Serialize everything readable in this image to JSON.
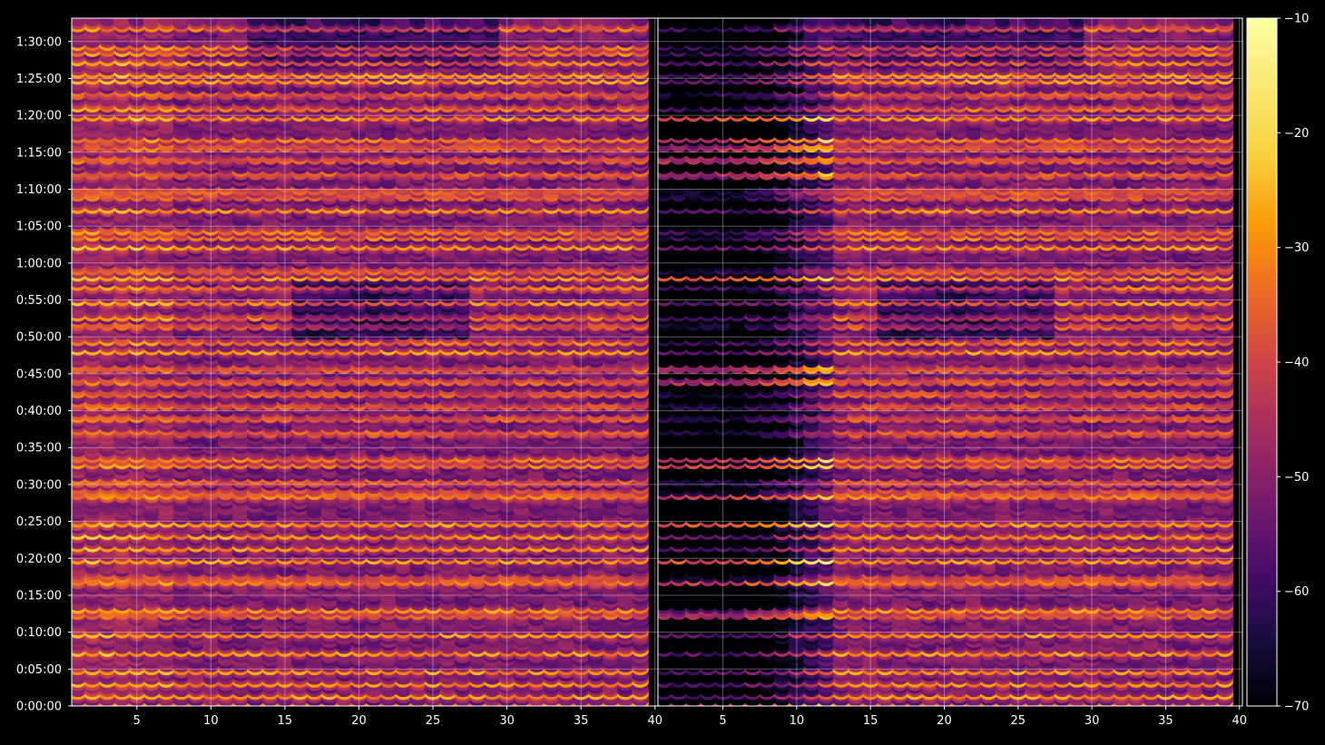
{
  "chart_data": {
    "type": "heatmap",
    "title": "",
    "xlabel": "",
    "ylabel": "",
    "panels": [
      {
        "name": "left",
        "xlim": [
          1,
          40
        ],
        "x_ticks": [
          "5",
          "10",
          "15",
          "20",
          "25",
          "30",
          "35",
          "40"
        ],
        "x_tick_values": [
          5,
          10,
          15,
          20,
          25,
          30,
          35,
          40
        ]
      },
      {
        "name": "right",
        "xlim": [
          1,
          40
        ],
        "x_ticks": [
          "5",
          "10",
          "15",
          "20",
          "25",
          "30",
          "35",
          "40"
        ],
        "x_tick_values": [
          5,
          10,
          15,
          20,
          25,
          30,
          35,
          40
        ]
      }
    ],
    "y_axis": {
      "unit": "time",
      "ylim_seconds": [
        0,
        5590
      ],
      "ticks": [
        "0:00:00",
        "0:05:00",
        "0:10:00",
        "0:15:00",
        "0:20:00",
        "0:25:00",
        "0:30:00",
        "0:35:00",
        "0:40:00",
        "0:45:00",
        "0:50:00",
        "0:55:00",
        "1:00:00",
        "1:05:00",
        "1:10:00",
        "1:15:00",
        "1:20:00",
        "1:25:00",
        "1:30:00"
      ],
      "tick_seconds": [
        0,
        300,
        600,
        900,
        1200,
        1500,
        1800,
        2100,
        2400,
        2700,
        3000,
        3300,
        3600,
        3900,
        4200,
        4500,
        4800,
        5100,
        5400
      ]
    },
    "colorbar": {
      "colormap": "inferno",
      "range": [
        -70,
        -10
      ],
      "ticks": [
        "−70",
        "−60",
        "−50",
        "−40",
        "−30",
        "−20",
        "−10"
      ],
      "tick_values": [
        -70,
        -60,
        -50,
        -40,
        -30,
        -20,
        -10
      ]
    },
    "rows": {
      "left_bright_times_seconds": [
        20,
        100,
        200,
        300,
        450,
        600,
        760,
        800,
        1020,
        1060,
        1200,
        1300,
        1400,
        1500,
        1720,
        1760,
        1840,
        1980,
        2030,
        2240,
        2360,
        2460,
        2560,
        2660,
        2760,
        2900,
        2980,
        3110,
        3180,
        3300,
        3420,
        3500,
        3560,
        3750,
        3830,
        3880,
        4050,
        4160,
        4210,
        4340,
        4460,
        4560,
        4620,
        4800,
        4880,
        4990,
        5100,
        5150,
        5250,
        5330,
        5370,
        5530
      ],
      "right_low_x_active_times_seconds": [
        20,
        760,
        1020,
        1200,
        1500,
        1720,
        1980,
        2030,
        2660,
        2760,
        3500,
        4340,
        4460,
        4560,
        4620,
        4800
      ]
    },
    "grid": true
  }
}
